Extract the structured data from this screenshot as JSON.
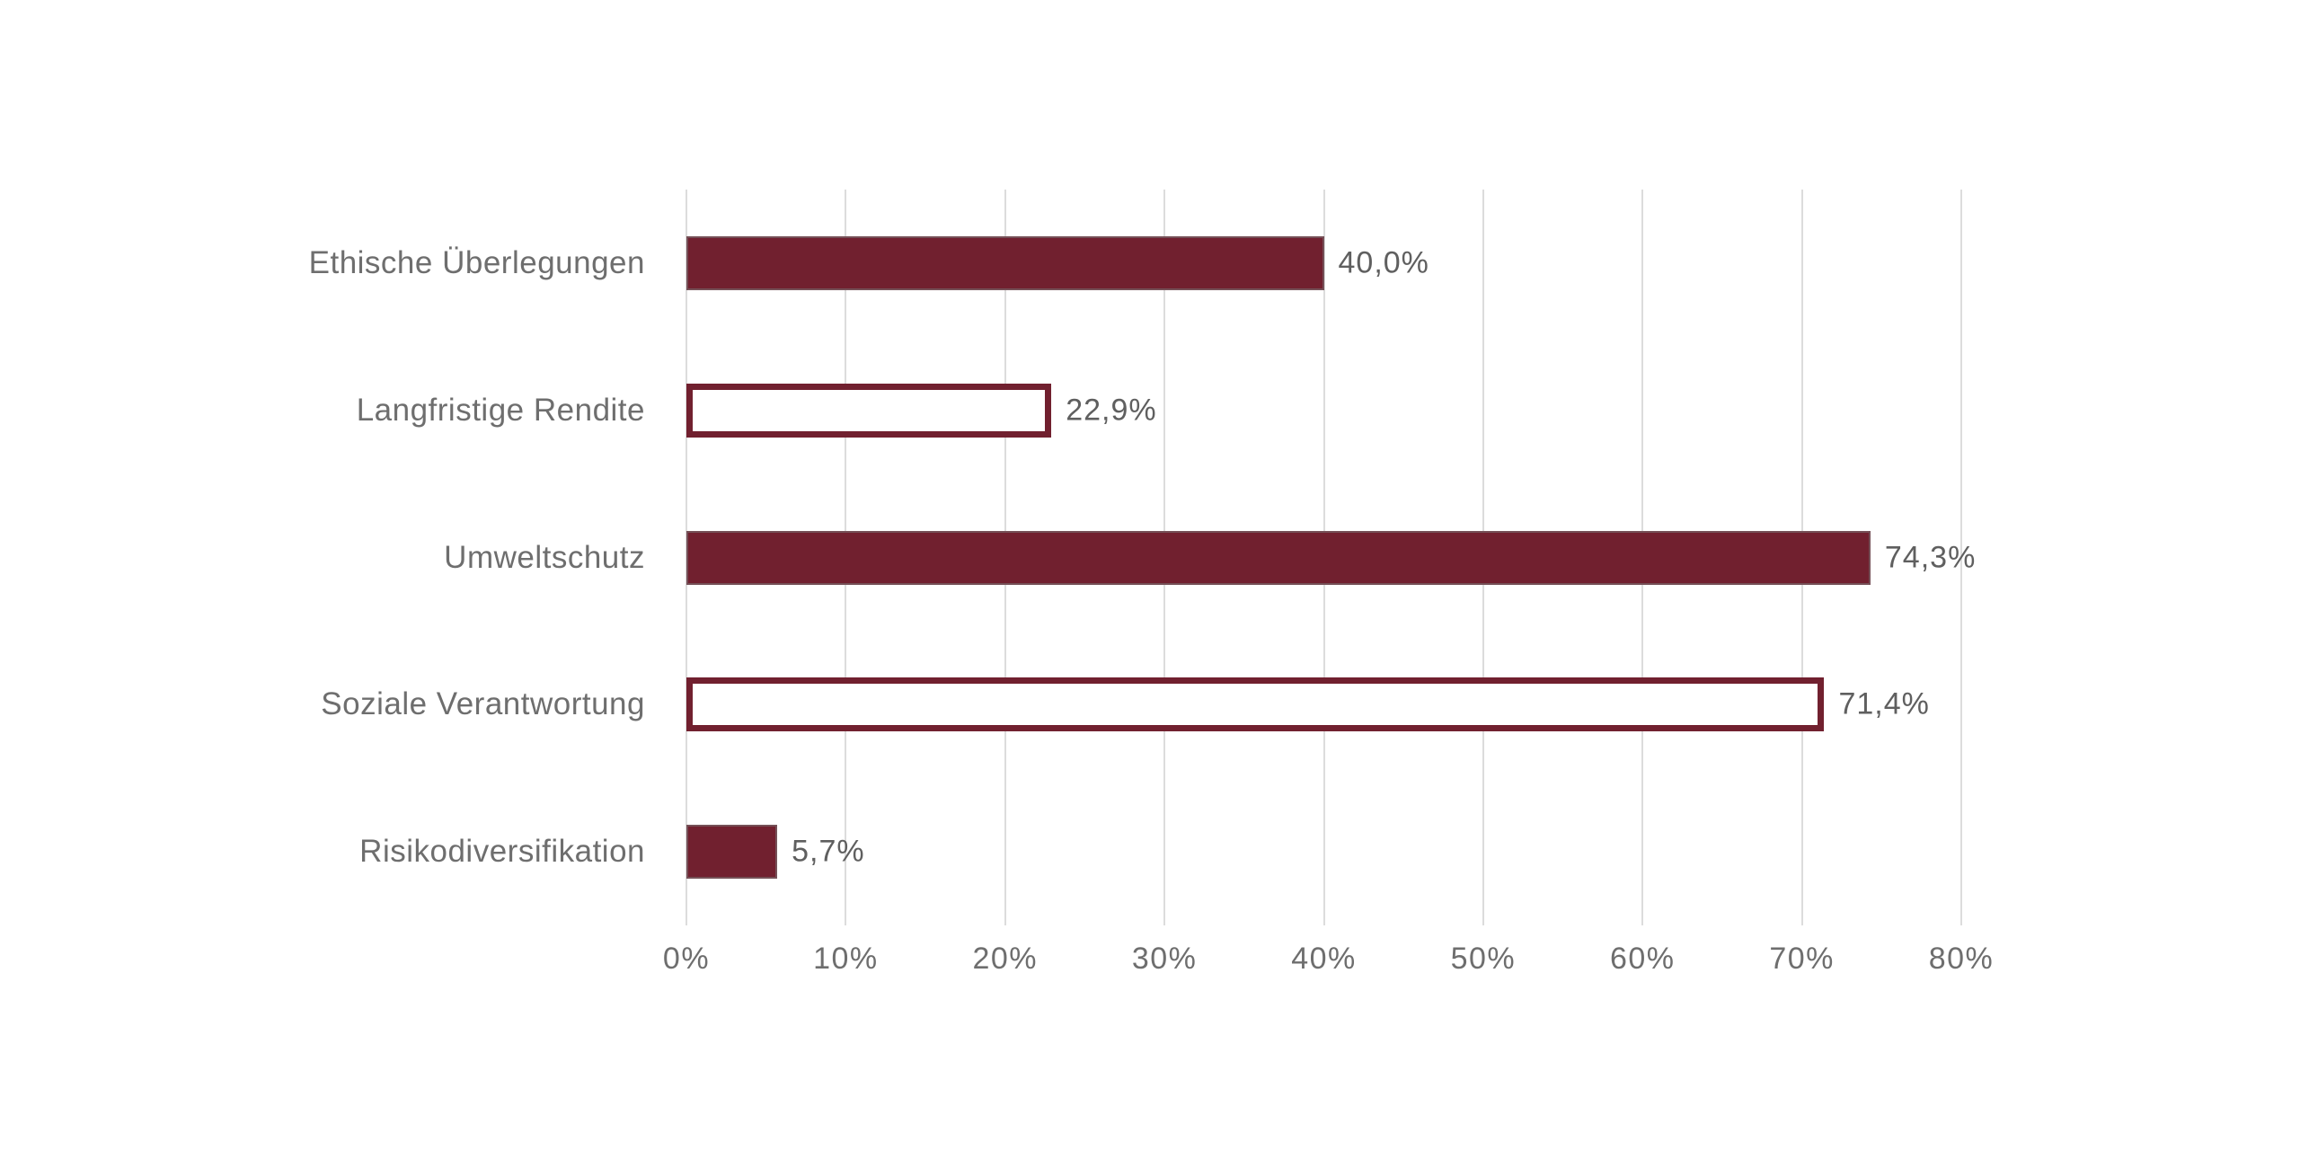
{
  "chart_data": {
    "type": "bar",
    "orientation": "horizontal",
    "title": "",
    "xlabel": "",
    "ylabel": "",
    "categories": [
      "Ethische Überlegungen",
      "Langfristige Rendite",
      "Umweltschutz",
      "Soziale Verantwortung",
      "Risikodiversifikation"
    ],
    "values": [
      40.0,
      22.9,
      74.3,
      71.4,
      5.7
    ],
    "value_labels": [
      "40,0%",
      "22,9%",
      "74,3%",
      "71,4%",
      "5,7%"
    ],
    "bar_styles": [
      "filled",
      "outline",
      "filled",
      "outline",
      "filled"
    ],
    "xlim": [
      0,
      80
    ],
    "x_tick_values": [
      0,
      10,
      20,
      30,
      40,
      50,
      60,
      70,
      80
    ],
    "x_tick_labels": [
      "0%",
      "10%",
      "20%",
      "30%",
      "40%",
      "50%",
      "60%",
      "70%",
      "80%"
    ],
    "grid": "vertical-gridlines-on",
    "legend": "none",
    "colors": {
      "bar_fill": "#71202f",
      "bar_outline_stroke": "#71202f",
      "filled_bar_border": "#787878",
      "gridline": "#dcdcdc",
      "category_text": "#6e6e6e",
      "value_text": "#5f5f5f",
      "tick_text": "#6e6e6e",
      "background": "#ffffff"
    }
  }
}
